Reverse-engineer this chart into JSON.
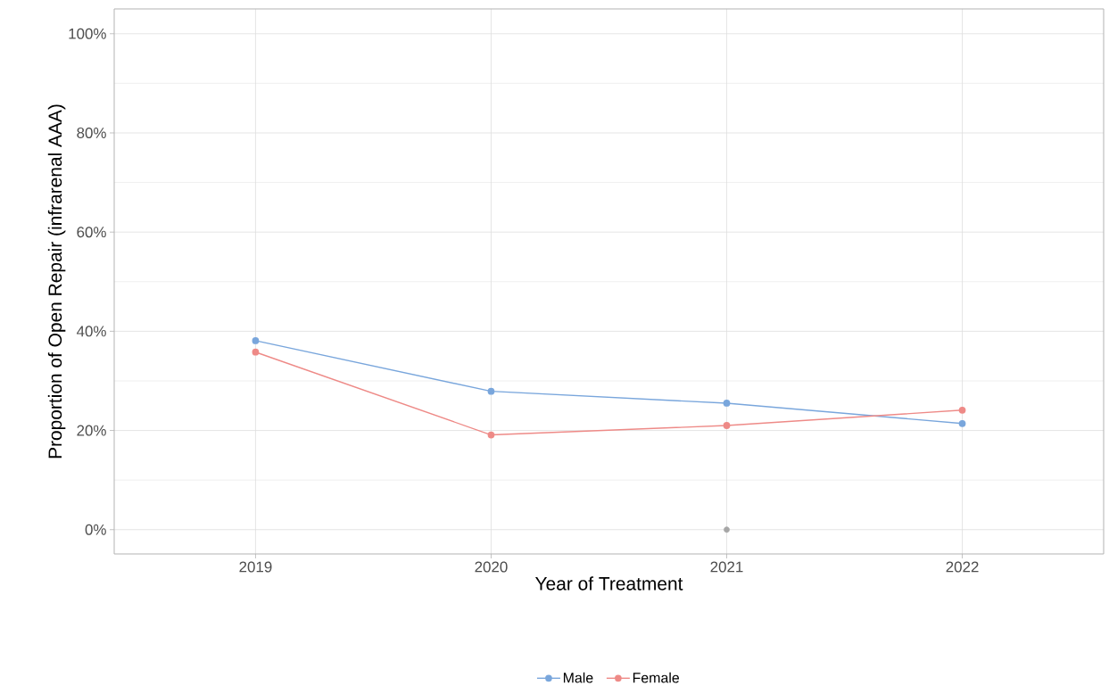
{
  "chart_data": {
    "type": "line",
    "xlabel": "Year of Treatment",
    "ylabel": "Proportion of Open Repair (infrarenal AAA)",
    "x": [
      2019,
      2020,
      2021,
      2022
    ],
    "series": [
      {
        "name": "Male",
        "color": "#79a6dc",
        "values": [
          38.1,
          27.9,
          25.5,
          21.4
        ]
      },
      {
        "name": "Female",
        "color": "#ee8a87",
        "values": [
          35.8,
          19.1,
          21.0,
          24.1
        ]
      },
      {
        "type": "scatter",
        "color": "#a6a6a6",
        "x": [
          2021
        ],
        "values": [
          0
        ]
      }
    ],
    "xlim": [
      2018.4,
      2022.6
    ],
    "ylim": [
      -4.9,
      105
    ],
    "xticks": [
      2019,
      2020,
      2021,
      2022
    ],
    "yticks": [
      {
        "value": 0,
        "label": "0%"
      },
      {
        "value": 20,
        "label": "20%"
      },
      {
        "value": 40,
        "label": "40%"
      },
      {
        "value": 60,
        "label": "60%"
      },
      {
        "value": 80,
        "label": "80%"
      },
      {
        "value": 100,
        "label": "100%"
      }
    ],
    "grid": true,
    "legend": "bottom",
    "marker": "circle",
    "line_style": "solid"
  }
}
